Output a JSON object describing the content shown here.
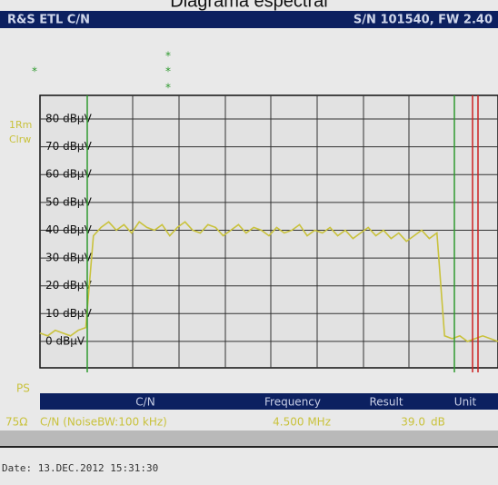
{
  "page_title": "Diagrama espectral",
  "header": {
    "instrument": "R&S ETL C/N",
    "serial": "S/N 101540, FW 2.40"
  },
  "markers": [
    "*",
    "*",
    "*",
    "*"
  ],
  "trace_info": [
    "1Rm",
    "Clrw"
  ],
  "chart_data": {
    "type": "line",
    "x": [
      0,
      1,
      2,
      3,
      4,
      5,
      6,
      7,
      8,
      9,
      10,
      11,
      12,
      13,
      14,
      15,
      16,
      17,
      18,
      19,
      20,
      21,
      22,
      23,
      24,
      25,
      26,
      27,
      28,
      29,
      30,
      31,
      32,
      33,
      34,
      35,
      36,
      37,
      38,
      39,
      40,
      41,
      42,
      43,
      44,
      45,
      46,
      47,
      48,
      49,
      50,
      51,
      52,
      53,
      54,
      55,
      56,
      57,
      58,
      59,
      60
    ],
    "series": [
      {
        "color": "#c9c23c",
        "values": [
          3,
          2,
          4,
          3,
          2,
          4,
          5,
          38,
          41,
          43,
          40,
          42,
          39,
          43,
          41,
          40,
          42,
          38,
          41,
          43,
          40,
          39,
          42,
          41,
          38,
          40,
          42,
          39,
          41,
          40,
          38,
          41,
          39,
          40,
          42,
          38,
          40,
          39,
          41,
          38,
          40,
          37,
          39,
          41,
          38,
          40,
          37,
          39,
          36,
          38,
          40,
          37,
          39,
          2,
          1,
          2,
          0,
          1,
          2,
          1,
          0
        ]
      }
    ],
    "xlim": [
      0,
      60
    ],
    "ylim": [
      -9.5,
      88.5
    ],
    "yticks": [
      {
        "value": 0,
        "label": "0 dBµV"
      },
      {
        "value": 10,
        "label": "10 dBµV"
      },
      {
        "value": 20,
        "label": "20 dBµV"
      },
      {
        "value": 30,
        "label": "30 dBµV"
      },
      {
        "value": 40,
        "label": "40 dBµV"
      },
      {
        "value": 50,
        "label": "50 dBµV"
      },
      {
        "value": 60,
        "label": "60 dBµV"
      },
      {
        "value": 70,
        "label": "70 dBµV"
      },
      {
        "value": 80,
        "label": "80 dBµV"
      }
    ],
    "grid": true
  },
  "results": {
    "section": "PS",
    "columns": [
      "C/N",
      "Frequency",
      "Result",
      "Unit"
    ],
    "row": {
      "impedance": "75Ω",
      "measurement": "C/N (NoiseBW:100 kHz)",
      "frequency": "4.500 MHz",
      "result": "39.0",
      "unit": "dB"
    }
  },
  "footer": {
    "date": "Date: 13.DEC.2012  15:31:30"
  }
}
